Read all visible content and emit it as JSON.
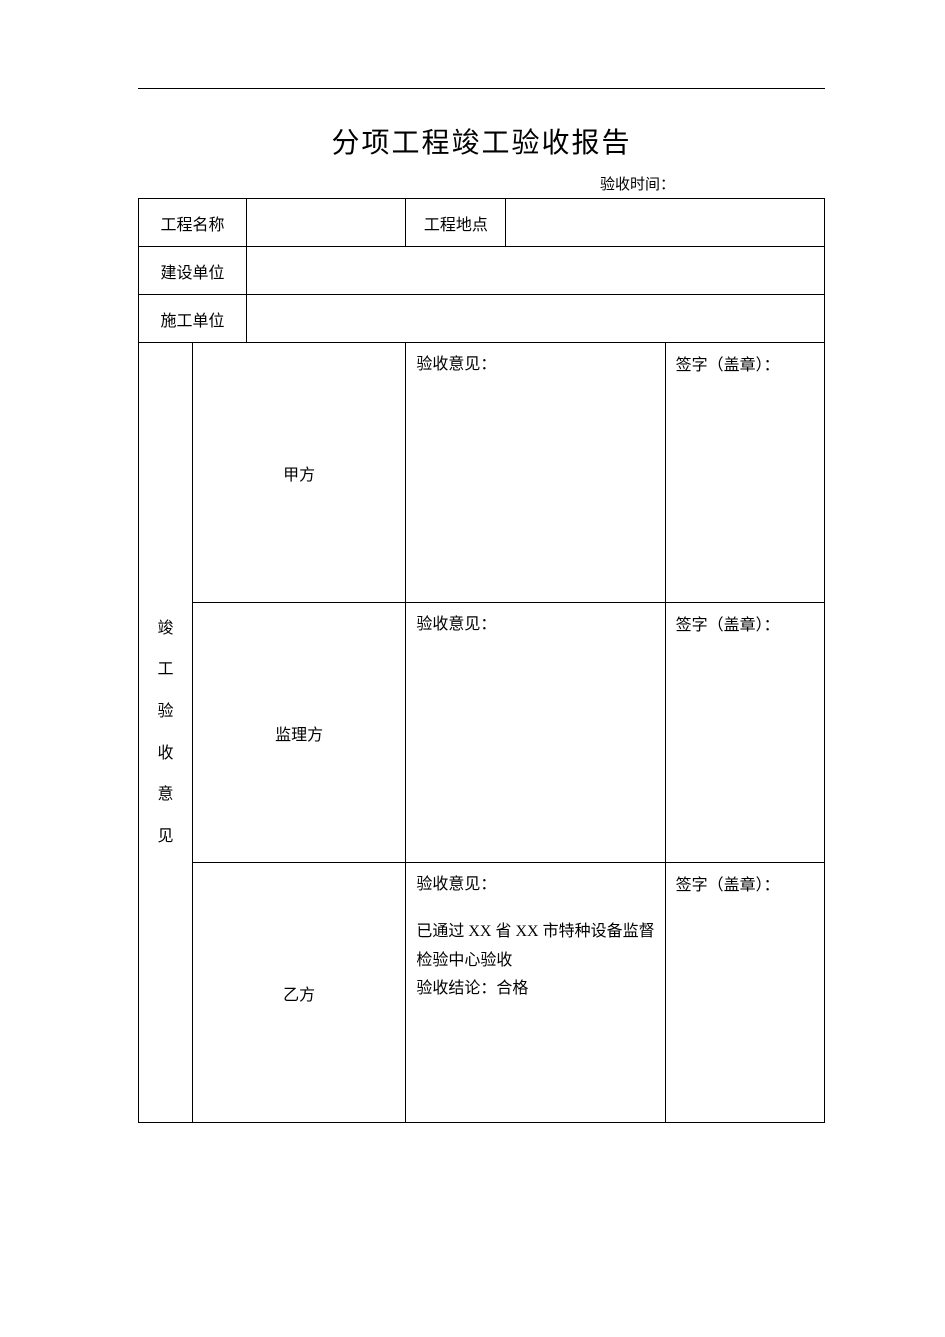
{
  "document": {
    "title": "分项工程竣工验收报告",
    "acceptance_time_label": "验收时间：",
    "colors": {
      "background": "#ffffff",
      "border": "#000000",
      "text": "#000000"
    },
    "typography": {
      "title_fontsize": 28,
      "body_fontsize": 16,
      "small_fontsize": 15,
      "vertical_header_fontsize": 22,
      "font_family": "SimSun"
    },
    "header_row": {
      "project_name_label": "工程名称",
      "project_name_value": "",
      "project_location_label": "工程地点",
      "project_location_value": ""
    },
    "construction_unit_row": {
      "label": "建设单位",
      "value": ""
    },
    "contractor_unit_row": {
      "label": "施工单位",
      "value": ""
    },
    "acceptance_section": {
      "vertical_header_chars": [
        "竣",
        "工",
        "验",
        "收",
        "意",
        "见"
      ],
      "parties": [
        {
          "party_label": "甲方",
          "opinion_label": "验收意见：",
          "opinion_body": "",
          "signature_label": "签字（盖章）："
        },
        {
          "party_label": "监理方",
          "opinion_label": "验收意见：",
          "opinion_body": "",
          "signature_label": "签字（盖章）："
        },
        {
          "party_label": "乙方",
          "opinion_label": "验收意见：",
          "opinion_body": "已通过 XX 省 XX 市特种设备监督检验中心验收\n验收结论：合格",
          "signature_label": "签字（盖章）："
        }
      ]
    }
  }
}
